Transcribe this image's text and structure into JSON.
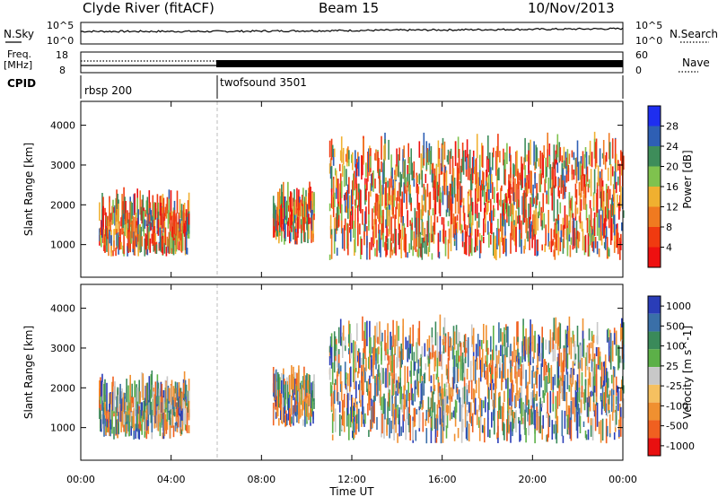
{
  "header": {
    "title": "Clyde River (fitACF)",
    "beam": "Beam 15",
    "date": "10/Nov/2013"
  },
  "info_panels": {
    "nsky_label": "N.Sky",
    "nsearch_label": "N.Search",
    "freq_label_1": "Freq.",
    "freq_label_2": "[MHz]",
    "nave_label": "Nave",
    "cpid_label": "CPID",
    "noise_ticks": [
      "10^5",
      "10^0"
    ],
    "freq_ticks": [
      "18",
      "8"
    ],
    "nave_ticks": [
      "60",
      "0"
    ],
    "cpid_segments": [
      {
        "label": "rbsp 200",
        "start_hour": 0,
        "end_hour": 6
      },
      {
        "label": "twofsound 3501",
        "start_hour": 6,
        "end_hour": 24
      }
    ]
  },
  "chart_data": [
    {
      "type": "heatmap",
      "ylabel": "Slant Range [km]",
      "yticks": [
        "1000",
        "2000",
        "3000",
        "4000"
      ],
      "ylim": [
        180,
        4600
      ],
      "xlim": [
        0,
        24
      ],
      "colorbar": {
        "label": "Power [dB]",
        "ticks": [
          "4",
          "8",
          "12",
          "16",
          "20",
          "24",
          "28"
        ],
        "colors": [
          "#1e2ef0",
          "#2e5fb4",
          "#3e8d5a",
          "#7fc24e",
          "#f0b030",
          "#f07a20",
          "#f03a10",
          "#ee1010"
        ]
      },
      "scatter_regions": [
        {
          "start_hour": 0.8,
          "end_hour": 4.8,
          "range_low": 700,
          "range_high": 1800,
          "dominant": "high power"
        },
        {
          "start_hour": 8.5,
          "end_hour": 10.3,
          "range_low": 1000,
          "range_high": 2000,
          "dominant": "high power"
        },
        {
          "start_hour": 11.0,
          "end_hour": 24.0,
          "range_low": 600,
          "range_high": 3200,
          "dominant": "high power"
        }
      ]
    },
    {
      "type": "heatmap",
      "ylabel": "Slant Range [km]",
      "yticks": [
        "1000",
        "2000",
        "3000",
        "4000"
      ],
      "ylim": [
        180,
        4600
      ],
      "xlim": [
        0,
        24
      ],
      "xticks": [
        "00:00",
        "04:00",
        "08:00",
        "12:00",
        "16:00",
        "20:00",
        "00:00"
      ],
      "xlabel": "Time UT",
      "colorbar": {
        "label": "Velocity [m s^-1]",
        "ticks": [
          "1000",
          "500",
          "100",
          "25",
          "-25",
          "-100",
          "-500",
          "-1000"
        ],
        "colors": [
          "#2a3db8",
          "#3a6fa8",
          "#3a8a5a",
          "#5cb048",
          "#c8c8c8",
          "#f5c060",
          "#f09030",
          "#f06020",
          "#e81010"
        ]
      },
      "scatter_regions": [
        {
          "start_hour": 0.8,
          "end_hour": 4.8,
          "range_low": 700,
          "range_high": 1800,
          "dominant": "green"
        },
        {
          "start_hour": 8.5,
          "end_hour": 10.3,
          "range_low": 1000,
          "range_high": 2000,
          "dominant": "orange"
        },
        {
          "start_hour": 11.0,
          "end_hour": 24.0,
          "range_low": 600,
          "range_high": 3200,
          "dominant": "orange/green"
        }
      ]
    }
  ]
}
